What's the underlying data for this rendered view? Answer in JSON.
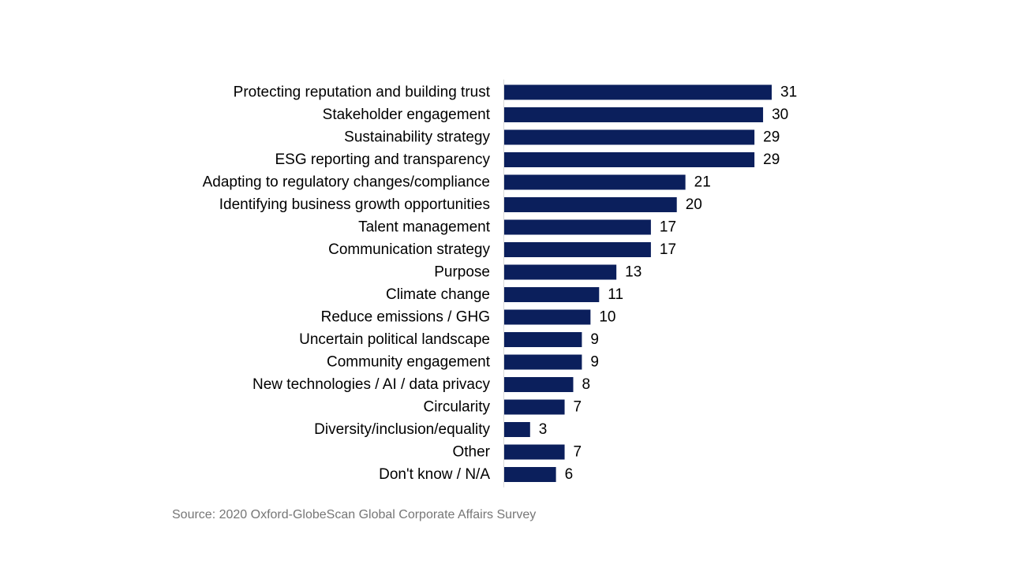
{
  "chart_data": {
    "type": "bar",
    "orientation": "horizontal",
    "categories": [
      "Protecting reputation and building trust",
      "Stakeholder engagement",
      "Sustainability strategy",
      "ESG reporting and transparency",
      "Adapting to regulatory changes/compliance",
      "Identifying business growth opportunities",
      "Talent management",
      "Communication strategy",
      "Purpose",
      "Climate change",
      "Reduce emissions / GHG",
      "Uncertain political landscape",
      "Community engagement",
      "New technologies / AI / data privacy",
      "Circularity",
      "Diversity/inclusion/equality",
      "Other",
      "Don't know / N/A"
    ],
    "values": [
      31,
      30,
      29,
      29,
      21,
      20,
      17,
      17,
      13,
      11,
      10,
      9,
      9,
      8,
      7,
      3,
      7,
      6
    ],
    "xlim": [
      0,
      31
    ],
    "grid": false,
    "legend": "none",
    "bar_color": "#0b1f5c",
    "axis_line_color": "#d9d9d9"
  },
  "source": "Source: 2020 Oxford-GlobeScan Global Corporate Affairs Survey"
}
